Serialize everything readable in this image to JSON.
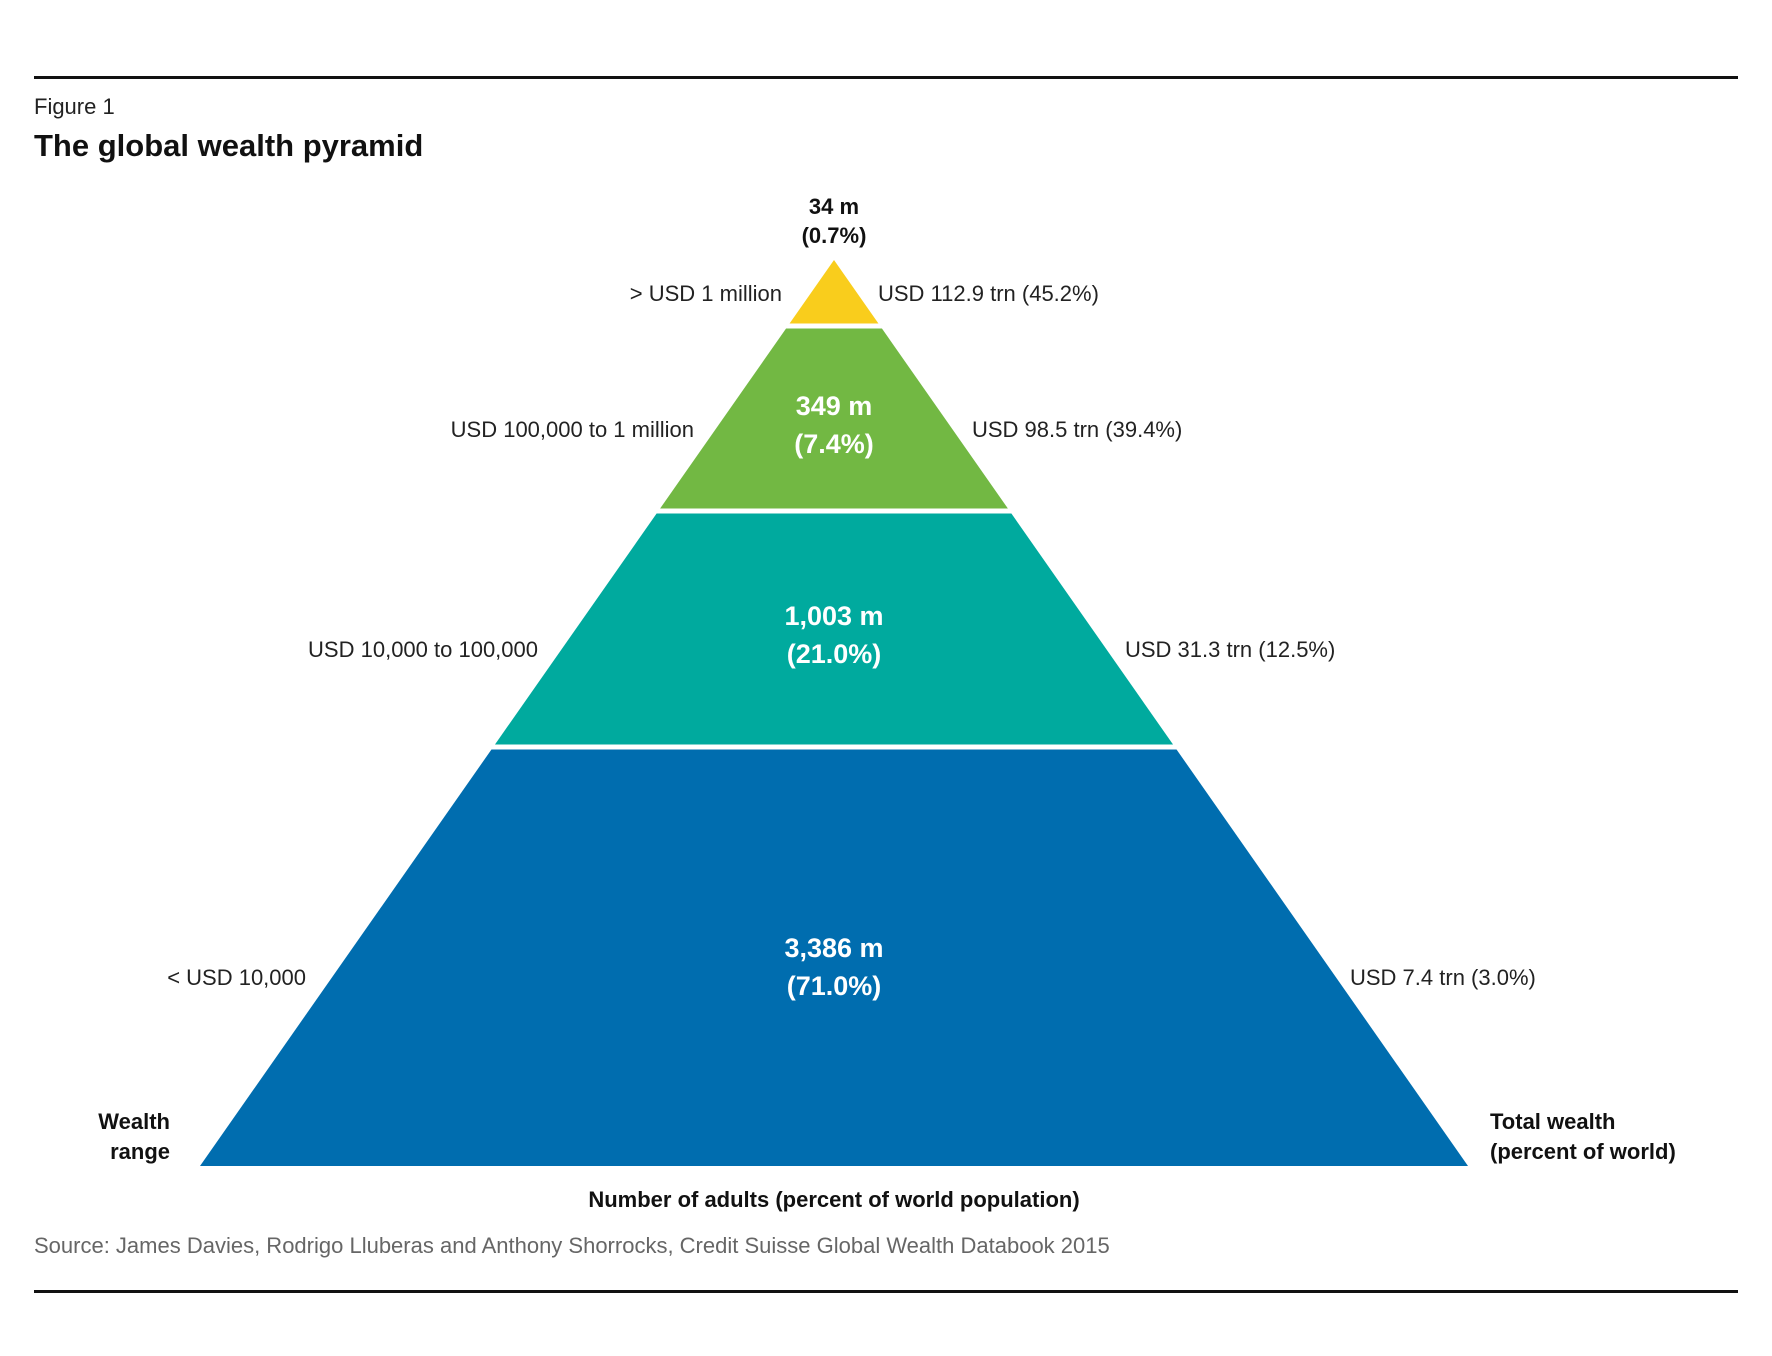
{
  "figure": {
    "label": "Figure 1",
    "title": "The global wealth pyramid",
    "source": "Source: James Davies, Rodrigo Lluberas and Anthony Shorrocks, Credit Suisse Global Wealth Databook 2015"
  },
  "axes": {
    "left_title": [
      "Wealth",
      "range"
    ],
    "right_title": [
      "Total wealth",
      "(percent of world)"
    ],
    "bottom_title": "Number of adults (percent of world population)"
  },
  "chart_data": {
    "type": "pyramid",
    "tiers": [
      {
        "wealth_range": "> USD 1 million",
        "adults": "34 m",
        "adults_pct": "(0.7%)",
        "total_wealth": "USD 112.9 trn (45.2%)",
        "color": "#f9cd1c"
      },
      {
        "wealth_range": "USD 100,000 to 1 million",
        "adults": "349 m",
        "adults_pct": "(7.4%)",
        "total_wealth": "USD 98.5 trn (39.4%)",
        "color": "#72b843"
      },
      {
        "wealth_range": "USD 10,000 to 100,000",
        "adults": "1,003 m",
        "adults_pct": "(21.0%)",
        "total_wealth": "USD 31.3 trn (12.5%)",
        "color": "#00aa9e"
      },
      {
        "wealth_range": "< USD 10,000",
        "adults": "3,386 m",
        "adults_pct": "(71.0%)",
        "total_wealth": "USD 7.4 trn (3.0%)",
        "color": "#006daf"
      }
    ]
  }
}
